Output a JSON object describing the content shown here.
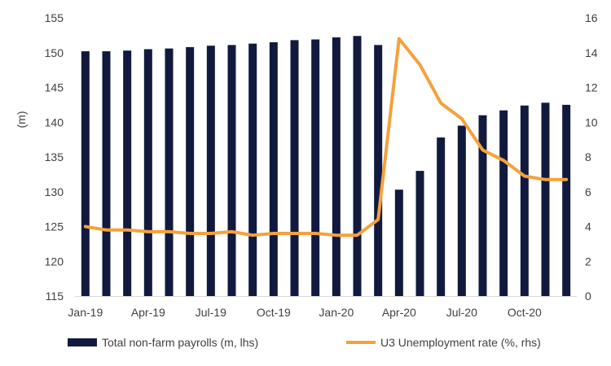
{
  "chart_data": {
    "type": "bar",
    "title": "",
    "ylabel": "(m)",
    "y2label": "",
    "categories": [
      "Jan-19",
      "Feb-19",
      "Mar-19",
      "Apr-19",
      "May-19",
      "Jun-19",
      "Jul-19",
      "Aug-19",
      "Sep-19",
      "Oct-19",
      "Nov-19",
      "Dec-19",
      "Jan-20",
      "Feb-20",
      "Mar-20",
      "Apr-20",
      "May-20",
      "Jun-20",
      "Jul-20",
      "Aug-20",
      "Sep-20",
      "Oct-20",
      "Nov-20",
      "Dec-20"
    ],
    "x_tick_labels": [
      "Jan-19",
      "Apr-19",
      "Jul-19",
      "Oct-19",
      "Jan-20",
      "Apr-20",
      "Jul-20",
      "Oct-20"
    ],
    "ylim": [
      115,
      155
    ],
    "y_ticks": [
      115,
      120,
      125,
      130,
      135,
      140,
      145,
      150,
      155
    ],
    "y2lim": [
      0,
      16
    ],
    "y2_ticks": [
      0,
      2,
      4,
      6,
      8,
      10,
      12,
      14,
      16
    ],
    "grid": false,
    "legend_position": "bottom",
    "series": [
      {
        "name": "Total non-farm payrolls (m, lhs)",
        "type": "bar",
        "axis": "left",
        "color": "#111a3e",
        "values": [
          150.2,
          150.2,
          150.3,
          150.5,
          150.6,
          150.8,
          151.0,
          151.1,
          151.3,
          151.5,
          151.8,
          151.9,
          152.2,
          152.4,
          151.1,
          130.3,
          133.0,
          137.8,
          139.5,
          141.0,
          141.7,
          142.4,
          142.8,
          142.5
        ]
      },
      {
        "name": "U3 Unemployment rate (%, rhs)",
        "type": "line",
        "axis": "right",
        "color": "#f5a13c",
        "values": [
          4.0,
          3.8,
          3.8,
          3.7,
          3.7,
          3.6,
          3.6,
          3.7,
          3.5,
          3.6,
          3.6,
          3.6,
          3.5,
          3.5,
          4.4,
          14.8,
          13.3,
          11.1,
          10.2,
          8.4,
          7.8,
          6.9,
          6.7,
          6.7
        ]
      }
    ]
  }
}
